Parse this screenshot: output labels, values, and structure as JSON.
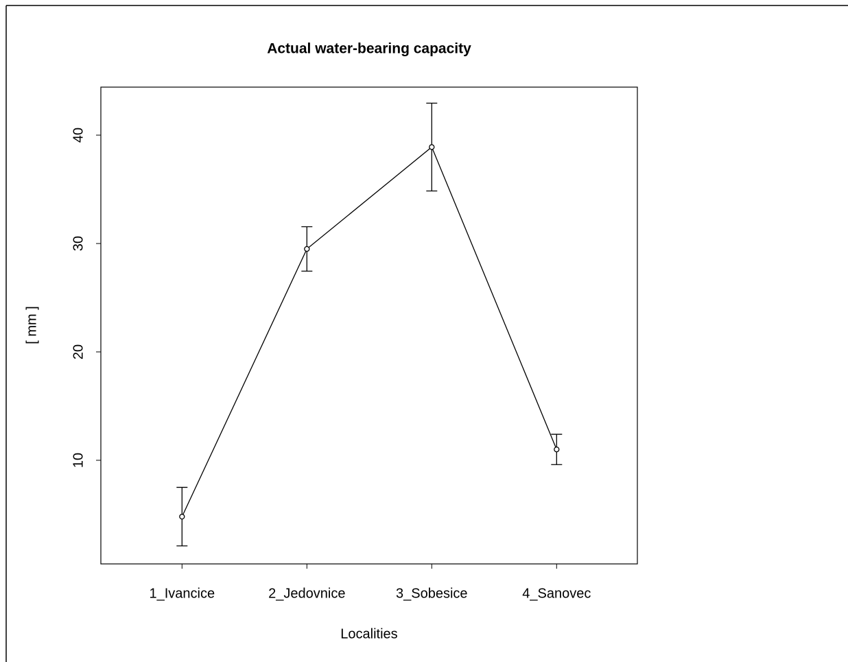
{
  "chart_data": {
    "type": "line",
    "title": "Actual water-bearing capacity",
    "xlabel": "Localities",
    "ylabel": "[ mm ]",
    "categories": [
      "1_Ivancice",
      "2_Jedovnice",
      "3_Sobesice",
      "4_Sanovec"
    ],
    "values": [
      4.8,
      29.5,
      38.9,
      11.0
    ],
    "errors": [
      2.7,
      2.05,
      4.05,
      1.4
    ],
    "color": "#000000",
    "ylim": [
      0.44,
      44.43
    ],
    "yticks": [
      10,
      20,
      30,
      40
    ],
    "grid": false
  }
}
